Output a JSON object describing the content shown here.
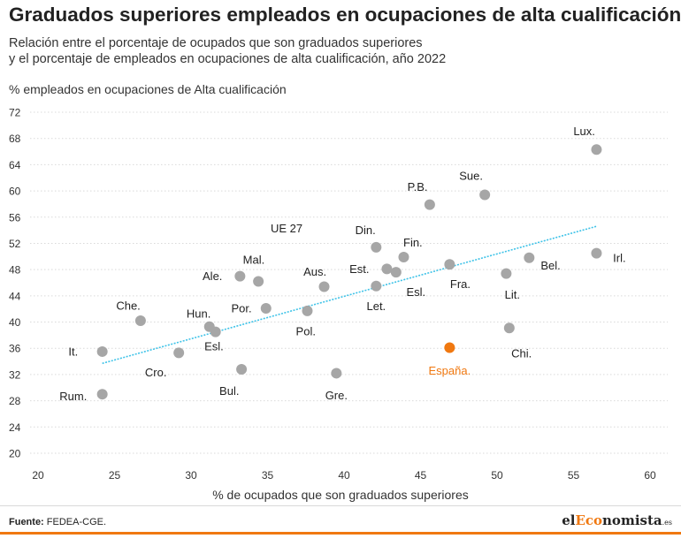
{
  "header": {
    "title": "Graduados superiores empleados en ocupaciones de alta cualificación",
    "subtitle_line1": "Relación entre el porcentaje de ocupados que son graduados superiores",
    "subtitle_line2": "y el porcentaje de empleados en ocupaciones de alta cualificación, año 2022"
  },
  "footer": {
    "source_label": "Fuente:",
    "source_text": "FEDEA-CGE.",
    "brand_pre": "el",
    "brand_highlight": "Eco",
    "brand_post": "nomista",
    "brand_suffix": ".es"
  },
  "colors": {
    "point": "#a6a6a6",
    "highlight": "#f07810",
    "trend": "#3fc3e8",
    "grid": "#d9d9d9",
    "accent_bar": "#f07810"
  },
  "chart_data": {
    "type": "scatter",
    "title": "",
    "xlabel": "% de ocupados que son graduados superiores",
    "ylabel": "% empleados en ocupaciones de Alta cualificación",
    "xlim": [
      20,
      62
    ],
    "ylim": [
      20,
      72
    ],
    "xticks": [
      20,
      25,
      30,
      35,
      40,
      45,
      50,
      55,
      60
    ],
    "yticks": [
      20,
      24,
      28,
      32,
      36,
      40,
      44,
      48,
      52,
      56,
      60,
      64,
      68,
      72
    ],
    "grid": "horizontal",
    "trendline": {
      "x": [
        24.2,
        56.5
      ],
      "y": [
        33.7,
        54.6
      ]
    },
    "annotations": [
      {
        "text": "UE 27",
        "x": 35.2,
        "y": 54.3
      }
    ],
    "points": [
      {
        "label": "Lux.",
        "x": 56.5,
        "y": 66.3,
        "lx": 55.7,
        "ly": 69.1
      },
      {
        "label": "Irl.",
        "x": 56.5,
        "y": 50.5,
        "lx": 58.0,
        "ly": 49.8
      },
      {
        "label": "Sue.",
        "x": 49.2,
        "y": 59.4,
        "lx": 48.3,
        "ly": 62.3
      },
      {
        "label": "P.B.",
        "x": 45.6,
        "y": 57.9,
        "lx": 44.8,
        "ly": 60.6
      },
      {
        "label": "Bel.",
        "x": 52.1,
        "y": 49.8,
        "lx": 53.5,
        "ly": 48.6
      },
      {
        "label": "Lit.",
        "x": 50.6,
        "y": 47.4,
        "lx": 51.0,
        "ly": 44.2
      },
      {
        "label": "Chi.",
        "x": 50.8,
        "y": 39.1,
        "lx": 51.6,
        "ly": 35.2
      },
      {
        "label": "Fra.",
        "x": 46.9,
        "y": 48.8,
        "lx": 47.6,
        "ly": 45.8
      },
      {
        "label": "Din.",
        "x": 42.1,
        "y": 51.4,
        "lx": 41.4,
        "ly": 54.0
      },
      {
        "label": "Fin.",
        "x": 43.9,
        "y": 49.9,
        "lx": 44.5,
        "ly": 52.1
      },
      {
        "label": "Est.",
        "x": 42.8,
        "y": 48.1,
        "lx": 41.0,
        "ly": 48.1
      },
      {
        "label": "Esl.",
        "x": 43.4,
        "y": 47.6,
        "lx": 44.7,
        "ly": 44.6
      },
      {
        "label": "Let.",
        "x": 42.1,
        "y": 45.5,
        "lx": 42.1,
        "ly": 42.4
      },
      {
        "label": "Aus.",
        "x": 38.7,
        "y": 45.4,
        "lx": 38.1,
        "ly": 47.7
      },
      {
        "label": "Mal.",
        "x": 34.4,
        "y": 46.2,
        "lx": 34.1,
        "ly": 49.5
      },
      {
        "label": "Ale.",
        "x": 33.2,
        "y": 47.0,
        "lx": 31.4,
        "ly": 47.0
      },
      {
        "label": "Por.",
        "x": 34.9,
        "y": 42.1,
        "lx": 33.3,
        "ly": 42.1
      },
      {
        "label": "Pol.",
        "x": 37.6,
        "y": 41.7,
        "lx": 37.5,
        "ly": 38.6
      },
      {
        "label": "Hun.",
        "x": 31.2,
        "y": 39.3,
        "lx": 30.5,
        "ly": 41.3
      },
      {
        "label": "Esl.",
        "x": 31.6,
        "y": 38.5,
        "lx": 31.5,
        "ly": 36.3
      },
      {
        "label": "Che.",
        "x": 26.7,
        "y": 40.2,
        "lx": 25.9,
        "ly": 42.5
      },
      {
        "label": "It.",
        "x": 24.2,
        "y": 35.5,
        "lx": 22.3,
        "ly": 35.5
      },
      {
        "label": "Cro.",
        "x": 29.2,
        "y": 35.3,
        "lx": 27.7,
        "ly": 32.3
      },
      {
        "label": "Bul.",
        "x": 33.3,
        "y": 32.8,
        "lx": 32.5,
        "ly": 29.5
      },
      {
        "label": "Gre.",
        "x": 39.5,
        "y": 32.2,
        "lx": 39.5,
        "ly": 28.8
      },
      {
        "label": "Rum.",
        "x": 24.2,
        "y": 29.0,
        "lx": 22.3,
        "ly": 28.7
      }
    ],
    "highlight_point": {
      "label": "España.",
      "x": 46.9,
      "y": 36.1,
      "lx": 46.9,
      "ly": 32.6
    }
  }
}
